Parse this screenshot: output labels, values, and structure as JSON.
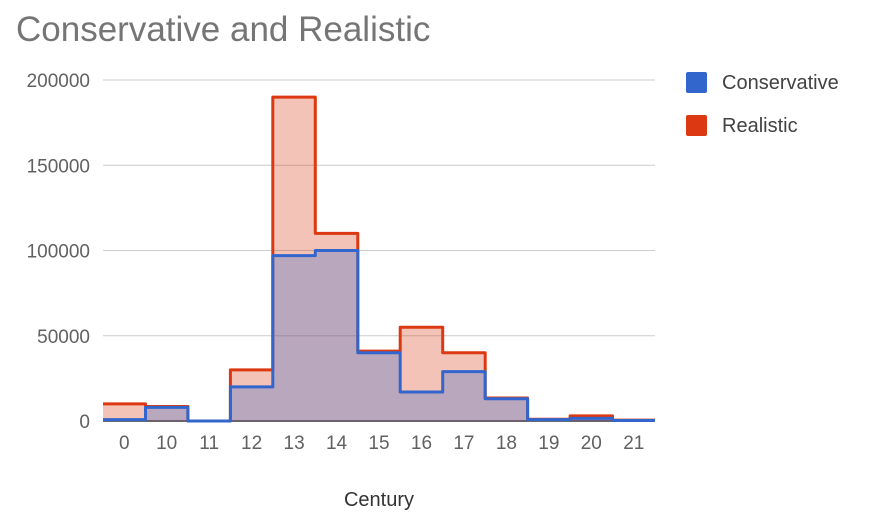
{
  "chart_data": {
    "type": "area",
    "step": true,
    "title": "Conservative and Realistic",
    "xlabel": "Century",
    "ylabel": "",
    "ylim": [
      0,
      200000
    ],
    "yticks": [
      0,
      50000,
      100000,
      150000,
      200000
    ],
    "categories": [
      "0",
      "10",
      "11",
      "12",
      "13",
      "14",
      "15",
      "16",
      "17",
      "18",
      "19",
      "20",
      "21"
    ],
    "grid": true,
    "legend_position": "right",
    "series": [
      {
        "name": "Conservative",
        "color": "#3366cc",
        "values": [
          800,
          8000,
          0,
          20000,
          97000,
          100000,
          40000,
          17000,
          29000,
          13000,
          800,
          1500,
          300
        ]
      },
      {
        "name": "Realistic",
        "color": "#dc3912",
        "values": [
          10000,
          8500,
          0,
          30000,
          190000,
          110000,
          41000,
          55000,
          40000,
          13500,
          1000,
          3000,
          500
        ]
      }
    ]
  }
}
